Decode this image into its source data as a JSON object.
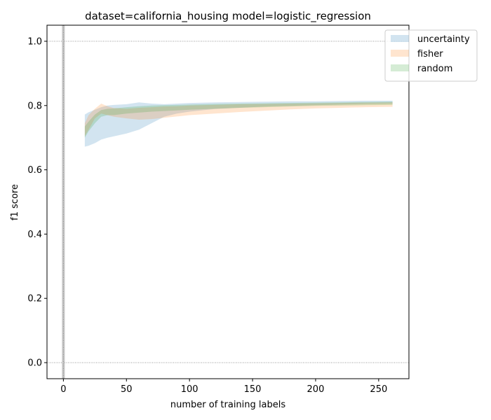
{
  "chart_data": {
    "type": "area",
    "title": "dataset=california_housing model=logistic_regression",
    "xlabel": "number of training labels",
    "ylabel": "f1 score",
    "xlim": [
      -13,
      274
    ],
    "ylim": [
      -0.05,
      1.05
    ],
    "xticks": [
      0,
      50,
      100,
      150,
      200,
      250
    ],
    "xtick_labels": [
      "0",
      "50",
      "100",
      "150",
      "200",
      "250"
    ],
    "yticks": [
      0.0,
      0.2,
      0.4,
      0.6,
      0.8,
      1.0
    ],
    "ytick_labels": [
      "0.0",
      "0.2",
      "0.4",
      "0.6",
      "0.8",
      "1.0"
    ],
    "grid": false,
    "reference_lines": {
      "y": [
        0.0,
        1.0
      ],
      "x": [
        0
      ]
    },
    "legend_position": "upper-right-outside",
    "series": [
      {
        "name": "uncertainty",
        "color": "#1f77b4",
        "x": [
          17,
          20,
          25,
          30,
          35,
          40,
          50,
          60,
          70,
          80,
          90,
          100,
          120,
          140,
          160,
          180,
          200,
          220,
          240,
          261
        ],
        "lower": [
          0.672,
          0.675,
          0.683,
          0.694,
          0.7,
          0.704,
          0.713,
          0.725,
          0.745,
          0.765,
          0.775,
          0.781,
          0.789,
          0.793,
          0.797,
          0.799,
          0.801,
          0.803,
          0.805,
          0.806
        ],
        "upper": [
          0.772,
          0.779,
          0.787,
          0.795,
          0.8,
          0.802,
          0.804,
          0.81,
          0.806,
          0.804,
          0.806,
          0.808,
          0.81,
          0.811,
          0.812,
          0.813,
          0.813,
          0.814,
          0.815,
          0.815
        ]
      },
      {
        "name": "fisher",
        "color": "#ff7f0e",
        "x": [
          17,
          20,
          25,
          30,
          35,
          40,
          50,
          60,
          70,
          80,
          90,
          100,
          120,
          140,
          160,
          180,
          200,
          220,
          240,
          261
        ],
        "lower": [
          0.705,
          0.725,
          0.76,
          0.775,
          0.77,
          0.765,
          0.76,
          0.756,
          0.758,
          0.762,
          0.766,
          0.77,
          0.775,
          0.78,
          0.784,
          0.788,
          0.791,
          0.793,
          0.795,
          0.796
        ],
        "upper": [
          0.745,
          0.77,
          0.79,
          0.806,
          0.798,
          0.792,
          0.79,
          0.793,
          0.795,
          0.797,
          0.798,
          0.8,
          0.802,
          0.804,
          0.805,
          0.806,
          0.807,
          0.808,
          0.809,
          0.81
        ]
      },
      {
        "name": "random",
        "color": "#2ca02c",
        "x": [
          17,
          20,
          25,
          30,
          35,
          40,
          50,
          60,
          70,
          80,
          90,
          100,
          120,
          140,
          160,
          180,
          200,
          220,
          240,
          261
        ],
        "lower": [
          0.7,
          0.72,
          0.745,
          0.765,
          0.77,
          0.77,
          0.775,
          0.778,
          0.781,
          0.783,
          0.785,
          0.787,
          0.79,
          0.793,
          0.795,
          0.797,
          0.799,
          0.8,
          0.801,
          0.802
        ],
        "upper": [
          0.735,
          0.75,
          0.772,
          0.786,
          0.79,
          0.791,
          0.795,
          0.798,
          0.8,
          0.801,
          0.802,
          0.803,
          0.805,
          0.806,
          0.807,
          0.808,
          0.809,
          0.81,
          0.811,
          0.812
        ]
      }
    ]
  }
}
